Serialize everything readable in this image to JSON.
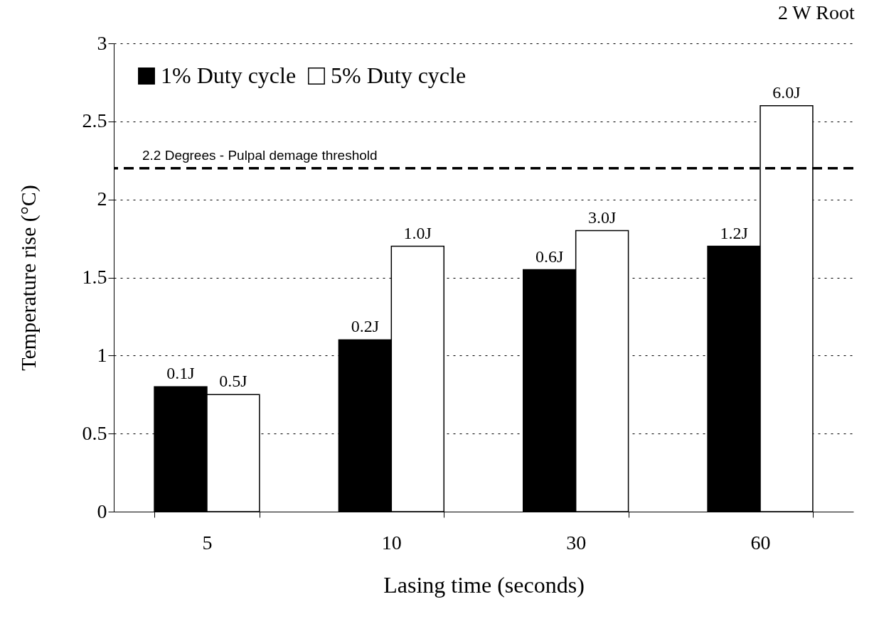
{
  "chart_data": {
    "type": "bar",
    "title": "2 W Root",
    "xlabel": "Lasing time (seconds)",
    "ylabel": "Temperature rise (°C)",
    "categories": [
      "5",
      "10",
      "30",
      "60"
    ],
    "series": [
      {
        "name": "1% Duty cycle",
        "color": "#000000",
        "values": [
          0.8,
          1.1,
          1.55,
          1.7
        ]
      },
      {
        "name": "5% Duty cycle",
        "color": "#ffffff",
        "values": [
          0.75,
          1.7,
          1.8,
          2.6
        ]
      }
    ],
    "annotations": [
      {
        "text": "0.1J",
        "x": "5",
        "y": 0.8
      },
      {
        "text": "0.2J",
        "x": "10",
        "y": 1.1
      },
      {
        "text": "0.6J",
        "x": "30",
        "y": 1.55
      },
      {
        "text": "1.2J",
        "x": "60",
        "y": 1.7
      },
      {
        "text": "0.5J",
        "x": "5",
        "y": 0.75
      },
      {
        "text": "1.0J",
        "x": "10",
        "y": 1.7
      },
      {
        "text": "3.0J",
        "x": "30",
        "y": 1.8
      },
      {
        "text": "6.0J",
        "x": "60",
        "y": 2.6
      }
    ],
    "ylim": [
      0,
      3
    ],
    "yticks": [
      0,
      0.5,
      1,
      1.5,
      2,
      2.5,
      3
    ],
    "grid": "y",
    "legend": "top left",
    "ref_lines": [
      {
        "axis": "y",
        "value": 2.2,
        "label": "2.2 Degrees - Pulpal demage threshold",
        "color": "#000000",
        "line_style": "dashed"
      }
    ]
  }
}
